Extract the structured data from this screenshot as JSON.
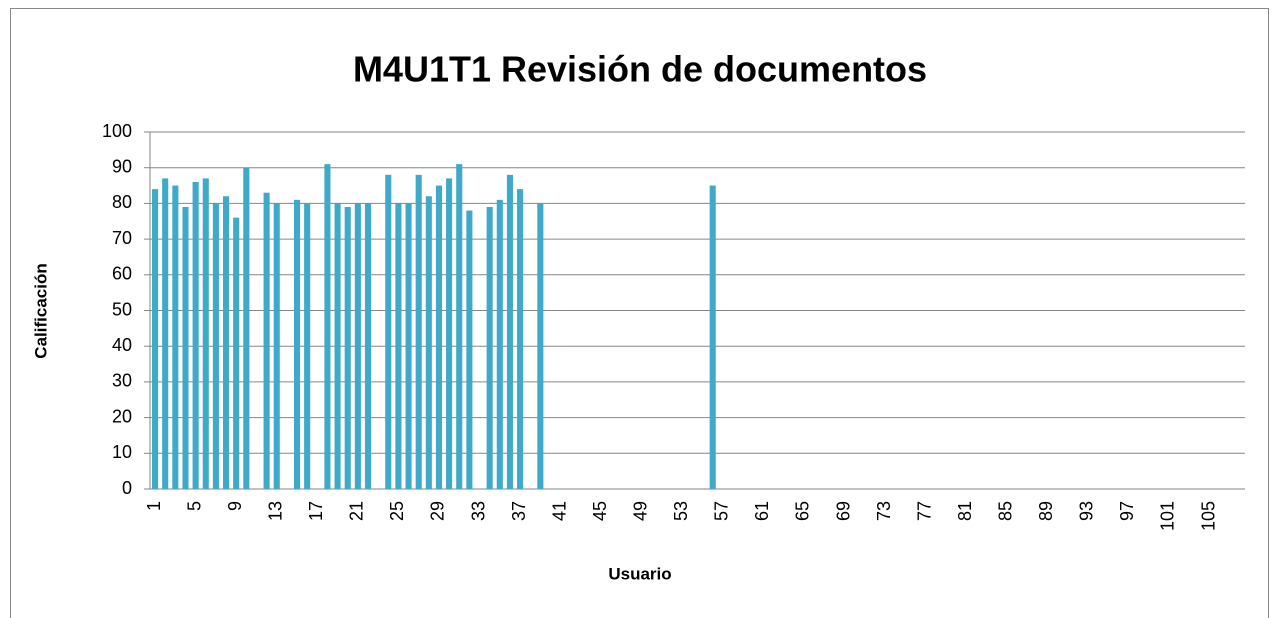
{
  "chart_data": {
    "type": "bar",
    "title": "M4U1T1 Revisión de documentos",
    "xlabel": "Usuario",
    "ylabel": "Calificación",
    "categories": [
      "1",
      null,
      null,
      null,
      "5",
      null,
      null,
      null,
      "9",
      null,
      null,
      null,
      "13",
      null,
      null,
      null,
      "17",
      null,
      null,
      null,
      "21",
      null,
      null,
      null,
      "25",
      null,
      null,
      null,
      "29",
      null,
      null,
      null,
      "33",
      null,
      null,
      null,
      "37",
      null,
      null,
      null,
      "41",
      null,
      null,
      null,
      "45",
      null,
      null,
      null,
      "49",
      null,
      null,
      null,
      "53",
      null,
      null,
      null,
      "57",
      null,
      null,
      null,
      "61",
      null,
      null,
      null,
      "65",
      null,
      null,
      null,
      "69",
      null,
      null,
      null,
      "73",
      null,
      null,
      null,
      "77",
      null,
      null,
      null,
      "81",
      null,
      null,
      null,
      "85",
      null,
      null,
      null,
      "89",
      null,
      null,
      null,
      "93",
      null,
      null,
      null,
      "97",
      null,
      null,
      null,
      "101",
      null,
      null,
      null,
      "105",
      null,
      null,
      null
    ],
    "values": [
      84,
      87,
      85,
      79,
      86,
      87,
      80,
      82,
      76,
      90,
      null,
      83,
      80,
      null,
      81,
      80,
      null,
      91,
      80,
      79,
      80,
      80,
      null,
      88,
      80,
      80,
      88,
      82,
      85,
      87,
      91,
      78,
      null,
      79,
      81,
      88,
      84,
      null,
      80,
      null,
      null,
      null,
      null,
      null,
      null,
      null,
      null,
      null,
      null,
      null,
      null,
      null,
      null,
      null,
      null,
      85,
      null,
      null,
      null,
      null,
      null,
      null,
      null,
      null,
      null,
      null,
      null,
      null,
      null,
      null,
      null,
      null,
      null,
      null,
      null,
      null,
      null,
      null,
      null,
      null,
      null,
      null,
      null,
      null,
      null,
      null,
      null,
      null,
      null,
      null,
      null,
      null,
      null,
      null,
      null,
      null,
      null,
      null,
      null,
      null,
      null,
      null,
      null,
      null,
      null,
      null,
      null,
      null
    ],
    "color": "#3fa9c9",
    "ylim": [
      0,
      100
    ],
    "yticks": [
      0,
      10,
      20,
      30,
      40,
      50,
      60,
      70,
      80,
      90,
      100
    ],
    "grid": true
  }
}
